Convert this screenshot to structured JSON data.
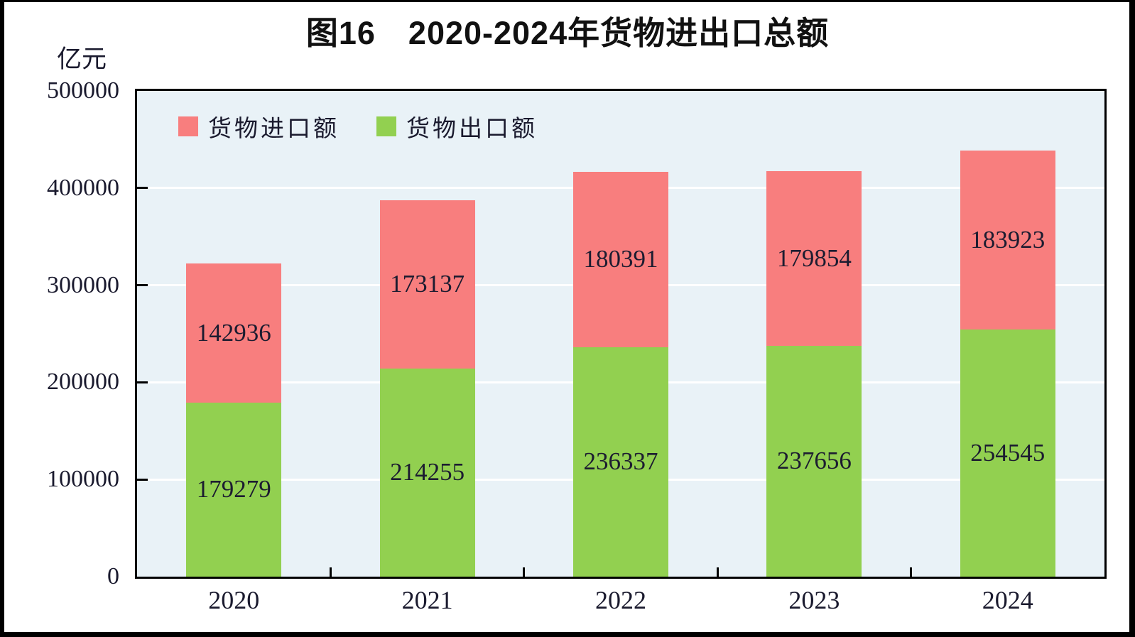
{
  "chart_data": {
    "type": "bar",
    "stacked": true,
    "title": "图16　2020-2024年货物进出口总额",
    "unit_label": "亿元",
    "categories": [
      "2020",
      "2021",
      "2022",
      "2023",
      "2024"
    ],
    "series": [
      {
        "name": "货物出口额",
        "color": "#92d050",
        "values": [
          179279,
          214255,
          236337,
          237656,
          254545
        ]
      },
      {
        "name": "货物进口额",
        "color": "#f87e7e",
        "values": [
          142936,
          173137,
          180391,
          179854,
          183923
        ]
      }
    ],
    "legend_order": [
      "货物进口额",
      "货物出口额"
    ],
    "legend_position": "top-left-inside",
    "ylim": [
      0,
      500000
    ],
    "ytick_interval": 100000,
    "yticks": [
      "500000",
      "400000",
      "300000",
      "200000",
      "100000",
      "0"
    ],
    "grid": "horizontal-white-lines",
    "plot_background": "#e9f2f7",
    "axis_color": "#000000",
    "label_color": "#1a1a2e"
  }
}
